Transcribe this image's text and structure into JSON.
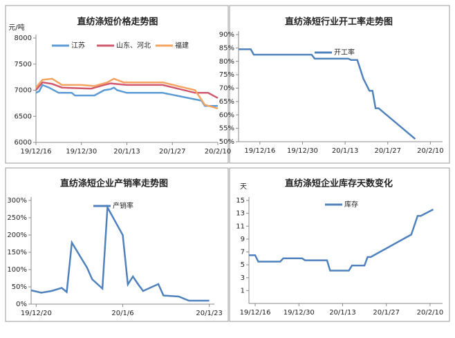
{
  "chart_data": [
    {
      "type": "line",
      "title": "直纺涤短价格走势图",
      "ylabel": "元/吨",
      "xlim": [
        "19/12/16",
        "20/2/10"
      ],
      "xticks": [
        "19/12/16",
        "19/12/30",
        "20/1/13",
        "20/1/27",
        "20/2/10"
      ],
      "ylim": [
        6000,
        8000
      ],
      "yticks": [
        6000,
        6500,
        7000,
        7500,
        8000
      ],
      "series": [
        {
          "name": "江苏",
          "color": "#5b9bd5",
          "x": [
            "19/12/16",
            "19/12/17",
            "19/12/18",
            "19/12/20",
            "19/12/23",
            "19/12/27",
            "19/12/28",
            "20/1/3",
            "20/1/6",
            "20/1/8",
            "20/1/9",
            "20/1/10",
            "20/1/13",
            "20/1/24",
            "20/2/5",
            "20/2/6",
            "20/2/10"
          ],
          "values": [
            6950,
            6980,
            7100,
            7050,
            6950,
            6950,
            6900,
            6900,
            7000,
            7020,
            7050,
            7000,
            6950,
            6950,
            6800,
            6700,
            6700
          ]
        },
        {
          "name": "山东、河北",
          "color": "#d0596e",
          "x": [
            "19/12/16",
            "19/12/18",
            "19/12/21",
            "19/12/24",
            "20/1/2",
            "20/1/6",
            "20/1/8",
            "20/1/13",
            "20/1/24",
            "20/2/3",
            "20/2/7",
            "20/2/10"
          ],
          "values": [
            7000,
            7150,
            7120,
            7050,
            7030,
            7100,
            7130,
            7100,
            7100,
            6950,
            6950,
            6850
          ]
        },
        {
          "name": "福建",
          "color": "#f4a460",
          "x": [
            "19/12/16",
            "19/12/18",
            "19/12/21",
            "19/12/24",
            "19/12/30",
            "20/1/3",
            "20/1/7",
            "20/1/9",
            "20/1/12",
            "20/1/24",
            "20/2/3",
            "20/2/6",
            "20/2/10"
          ],
          "values": [
            7050,
            7200,
            7220,
            7100,
            7100,
            7080,
            7150,
            7220,
            7150,
            7150,
            7000,
            6720,
            6650
          ]
        }
      ]
    },
    {
      "type": "line",
      "title": "直纺涤短行业开工率走势图",
      "xlim": [
        "19/12/9",
        "20/2/14"
      ],
      "xticks": [
        "19/12/16",
        "19/12/30",
        "20/1/13",
        "20/1/27",
        "20/2/10"
      ],
      "ylim": [
        50,
        90
      ],
      "yticks": [
        {
          "value": 50,
          "label": "50%"
        },
        {
          "value": 55,
          "label": "55%"
        },
        {
          "value": 60,
          "label": "60%"
        },
        {
          "value": 65,
          "label": "65%"
        },
        {
          "value": 70,
          "label": "70%"
        },
        {
          "value": 75,
          "label": "75%"
        },
        {
          "value": 80,
          "label": "80%"
        },
        {
          "value": 85,
          "label": "85%"
        },
        {
          "value": 90,
          "label": "90%"
        }
      ],
      "series": [
        {
          "name": "开工率",
          "color": "#4f81bd",
          "x": [
            "19/12/9",
            "19/12/13",
            "19/12/14",
            "20/1/2",
            "20/1/3",
            "20/1/14",
            "20/1/15",
            "20/1/17",
            "20/1/19",
            "20/1/21",
            "20/1/22",
            "20/1/23",
            "20/1/24",
            "20/2/4",
            "20/2/5"
          ],
          "values": [
            84.5,
            84.5,
            82.5,
            82.5,
            81,
            81,
            80.5,
            80.5,
            73.5,
            69,
            69,
            62.5,
            62.5,
            52,
            51
          ]
        }
      ]
    },
    {
      "type": "line",
      "title": "直纺涤短企业产销率走势图",
      "xlim": [
        "19/12/19",
        "20/1/24"
      ],
      "xticks": [
        "19/12/20",
        "20/1/6",
        "20/1/23"
      ],
      "ylim": [
        0,
        300
      ],
      "yticks": [
        {
          "value": 0,
          "label": "0%"
        },
        {
          "value": 50,
          "label": "50%"
        },
        {
          "value": 100,
          "label": "100%"
        },
        {
          "value": 150,
          "label": "150%"
        },
        {
          "value": 200,
          "label": "200%"
        },
        {
          "value": 250,
          "label": "250%"
        },
        {
          "value": 300,
          "label": "300%"
        }
      ],
      "series": [
        {
          "name": "产销率",
          "color": "#4f81bd",
          "x": [
            "19/12/19",
            "19/12/21",
            "19/12/23",
            "19/12/25",
            "19/12/26",
            "19/12/27",
            "19/12/30",
            "19/12/31",
            "20/1/2",
            "20/1/3",
            "20/1/6",
            "20/1/7",
            "20/1/8",
            "20/1/9",
            "20/1/10",
            "20/1/13",
            "20/1/14",
            "20/1/17",
            "20/1/19",
            "20/1/23"
          ],
          "values": [
            40,
            33,
            38,
            47,
            35,
            178,
            105,
            72,
            45,
            280,
            200,
            57,
            80,
            58,
            38,
            58,
            25,
            22,
            10,
            10
          ]
        }
      ]
    },
    {
      "type": "line",
      "title": "直纺涤短企业库存天数变化",
      "ylabel": "天",
      "xlim": [
        "19/12/14",
        "20/2/14"
      ],
      "xticks": [
        "19/12/16",
        "19/12/30",
        "20/1/13",
        "20/1/27",
        "20/2/10"
      ],
      "ylim": [
        -1,
        15
      ],
      "yticks": [
        1,
        3,
        5,
        7,
        9,
        11,
        13,
        15
      ],
      "series": [
        {
          "name": "库存",
          "color": "#4f81bd",
          "x": [
            "19/12/14",
            "19/12/16",
            "19/12/17",
            "19/12/24",
            "19/12/25",
            "19/12/31",
            "20/1/1",
            "20/1/8",
            "20/1/9",
            "20/1/15",
            "20/1/16",
            "20/1/20",
            "20/1/21",
            "20/1/22",
            "20/2/4",
            "20/2/6",
            "20/2/7",
            "20/2/11"
          ],
          "values": [
            6.5,
            6.5,
            5.5,
            5.5,
            6,
            6,
            5.7,
            5.7,
            4.1,
            4.1,
            4.9,
            4.9,
            6.2,
            6.2,
            9.7,
            12.6,
            12.6,
            13.6
          ]
        }
      ]
    }
  ]
}
